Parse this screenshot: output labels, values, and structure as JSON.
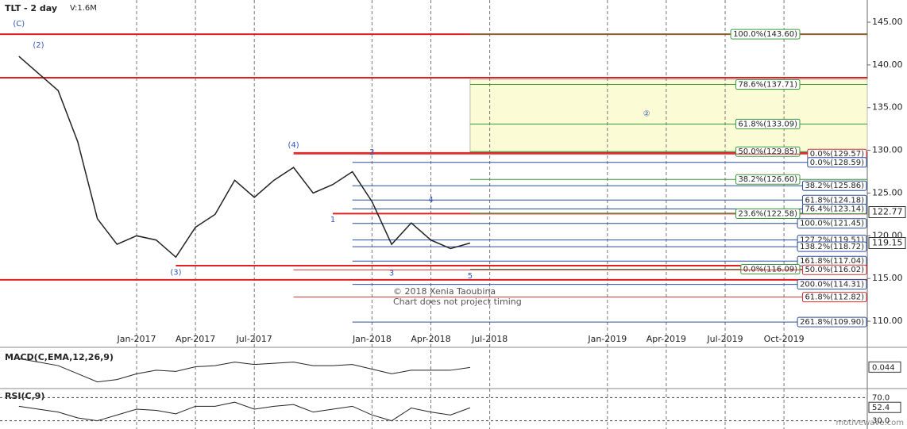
{
  "chart_data": {
    "type": "line",
    "title": "TLT - 2 day",
    "volume_label": "V:1.6M",
    "x": [
      "2016-07",
      "2016-08",
      "2016-09",
      "2016-10",
      "2016-11",
      "2016-12",
      "2017-01",
      "2017-02",
      "2017-03",
      "2017-04",
      "2017-05",
      "2017-06",
      "2017-07",
      "2017-08",
      "2017-09",
      "2017-10",
      "2017-11",
      "2017-12",
      "2018-01",
      "2018-02",
      "2018-03",
      "2018-04",
      "2018-05",
      "2018-06"
    ],
    "values": [
      141,
      139,
      137,
      131,
      122,
      119,
      120,
      119.5,
      117.5,
      121,
      122.5,
      126.5,
      124.5,
      126.5,
      128,
      125,
      126,
      127.5,
      124,
      119,
      121.5,
      119.5,
      118.5,
      119.15
    ],
    "color": "#222222",
    "ylim": [
      107.5,
      147.6
    ],
    "yticks": [
      {
        "value": 110,
        "label": "110.00"
      },
      {
        "value": 115,
        "label": "115.00"
      },
      {
        "value": 120,
        "label": "120.00"
      },
      {
        "value": 125,
        "label": "125.00"
      },
      {
        "value": 130,
        "label": "130.00"
      },
      {
        "value": 135,
        "label": "135.00"
      },
      {
        "value": 140,
        "label": "140.00"
      },
      {
        "value": 145,
        "label": "145.00"
      }
    ],
    "xticks": [
      {
        "value": "2017-01",
        "label": "Jan-2017"
      },
      {
        "value": "2017-04",
        "label": "Apr-2017"
      },
      {
        "value": "2017-07",
        "label": "Jul-2017"
      },
      {
        "value": "2018-01",
        "label": "Jan-2018"
      },
      {
        "value": "2018-04",
        "label": "Apr-2018"
      },
      {
        "value": "2018-07",
        "label": "Jul-2018"
      },
      {
        "value": "2019-01",
        "label": "Jan-2019"
      },
      {
        "value": "2019-04",
        "label": "Apr-2019"
      },
      {
        "value": "2019-07",
        "label": "Jul-2019"
      },
      {
        "value": "2019-10",
        "label": "Oct-2019"
      }
    ],
    "price_markers": [
      {
        "value": 122.77,
        "label": "122.77"
      },
      {
        "value": 119.15,
        "label": "119.15"
      }
    ],
    "red_levels": [
      {
        "value": 143.6,
        "from": null
      },
      {
        "value": 138.5,
        "from": null
      },
      {
        "value": 129.7,
        "from": "2017-09"
      },
      {
        "value": 122.6,
        "from": "2017-11"
      },
      {
        "value": 116.5,
        "from": "2017-03"
      },
      {
        "value": 114.85,
        "from": null
      }
    ],
    "target_zone": {
      "from": "2018-06",
      "low": 129.85,
      "high": 138.3,
      "color": "#fbfbd5"
    },
    "fib_levels": [
      {
        "value": 143.6,
        "label": "100.0%(143.60)",
        "color": "#3a9a3a",
        "from": "2018-06",
        "side": "mid"
      },
      {
        "value": 137.71,
        "label": "78.6%(137.71)",
        "color": "#3a9a3a",
        "from": "2018-06",
        "side": "mid"
      },
      {
        "value": 133.09,
        "label": "61.8%(133.09)",
        "color": "#3a9a3a",
        "from": "2018-06",
        "side": "mid"
      },
      {
        "value": 129.85,
        "label": "50.0%(129.85)",
        "color": "#3a9a3a",
        "from": "2018-06",
        "side": "mid"
      },
      {
        "value": 129.57,
        "label": "0.0%(129.57)",
        "color": "#c33",
        "from": "2017-09",
        "side": "right"
      },
      {
        "value": 128.59,
        "label": "0.0%(128.59)",
        "color": "#2a4d9a",
        "from": "2017-12",
        "side": "right"
      },
      {
        "value": 126.6,
        "label": "38.2%(126.60)",
        "color": "#3a9a3a",
        "from": "2018-06",
        "side": "mid"
      },
      {
        "value": 125.86,
        "label": "38.2%(125.86)",
        "color": "#2a4d9a",
        "from": "2017-12",
        "side": "right"
      },
      {
        "value": 124.18,
        "label": "61.8%(124.18)",
        "color": "#2a4d9a",
        "from": "2017-12",
        "side": "right"
      },
      {
        "value": 123.14,
        "label": "76.4%(123.14)",
        "color": "#2a4d9a",
        "from": "2017-12",
        "side": "right"
      },
      {
        "value": 122.58,
        "label": "23.6%(122.58)",
        "color": "#3a9a3a",
        "from": "2018-06",
        "side": "mid"
      },
      {
        "value": 121.45,
        "label": "100.0%(121.45)",
        "color": "#2a4d9a",
        "from": "2017-12",
        "side": "right"
      },
      {
        "value": 119.51,
        "label": "127.2%(119.51)",
        "color": "#2a4d9a",
        "from": "2017-12",
        "side": "right"
      },
      {
        "value": 118.72,
        "label": "138.2%(118.72)",
        "color": "#2a4d9a",
        "from": "2017-12",
        "side": "right"
      },
      {
        "value": 117.04,
        "label": "161.8%(117.04)",
        "color": "#2a4d9a",
        "from": "2017-12",
        "side": "right"
      },
      {
        "value": 116.09,
        "label": "0.0%(116.09)",
        "color": "#3a9a3a",
        "from": "2018-06",
        "side": "mid"
      },
      {
        "value": 116.02,
        "label": "50.0%(116.02)",
        "color": "#c33",
        "from": "2017-09",
        "side": "right"
      },
      {
        "value": 114.31,
        "label": "200.0%(114.31)",
        "color": "#2a4d9a",
        "from": "2017-12",
        "side": "right"
      },
      {
        "value": 112.82,
        "label": "61.8%(112.82)",
        "color": "#c33",
        "from": "2017-09",
        "side": "right"
      },
      {
        "value": 109.9,
        "label": "261.8%(109.90)",
        "color": "#2a4d9a",
        "from": "2017-12",
        "side": "right"
      }
    ],
    "waves": [
      {
        "text": "(C)",
        "x": "2016-07",
        "y": 144.8
      },
      {
        "text": "(2)",
        "x": "2016-08",
        "y": 142.3
      },
      {
        "text": "(3)",
        "x": "2017-03",
        "y": 115.7
      },
      {
        "text": "(4)",
        "x": "2017-09",
        "y": 130.6
      },
      {
        "text": "1",
        "x": "2017-11",
        "y": 121.9
      },
      {
        "text": "2",
        "x": "2018-01",
        "y": 129.8
      },
      {
        "text": "3",
        "x": "2018-02",
        "y": 115.6
      },
      {
        "text": "4",
        "x": "2018-04",
        "y": 124.2
      },
      {
        "text": "5",
        "x": "2018-06",
        "y": 115.3
      },
      {
        "text": "②",
        "x": "2019-03",
        "y": 134.3
      }
    ],
    "macd": {
      "title": "MACD(C,EMA,12,26,9)",
      "ylim": [
        -1.5,
        1.5
      ],
      "values": [
        0.8,
        0.5,
        0.2,
        -0.5,
        -1.2,
        -1.0,
        -0.5,
        -0.2,
        -0.3,
        0.1,
        0.2,
        0.5,
        0.3,
        0.4,
        0.5,
        0.2,
        0.2,
        0.3,
        -0.1,
        -0.5,
        -0.2,
        -0.2,
        -0.2,
        0.044
      ],
      "last": {
        "value": 0.044,
        "label": "0.044"
      }
    },
    "rsi": {
      "title": "RSI(C,9)",
      "ylim": [
        20,
        80
      ],
      "yticks": [
        {
          "value": 70,
          "label": "70.0"
        },
        {
          "value": 30,
          "label": "30.0"
        }
      ],
      "values": [
        55,
        50,
        45,
        35,
        30,
        40,
        50,
        48,
        42,
        55,
        55,
        62,
        50,
        55,
        58,
        45,
        50,
        55,
        40,
        30,
        52,
        45,
        40,
        52.4
      ],
      "last": {
        "value": 52.4,
        "label": "52.4"
      }
    },
    "copyright": "© 2018 Xenia Taoubina",
    "note": "Chart does not project timing",
    "source": "motivewave.com"
  }
}
